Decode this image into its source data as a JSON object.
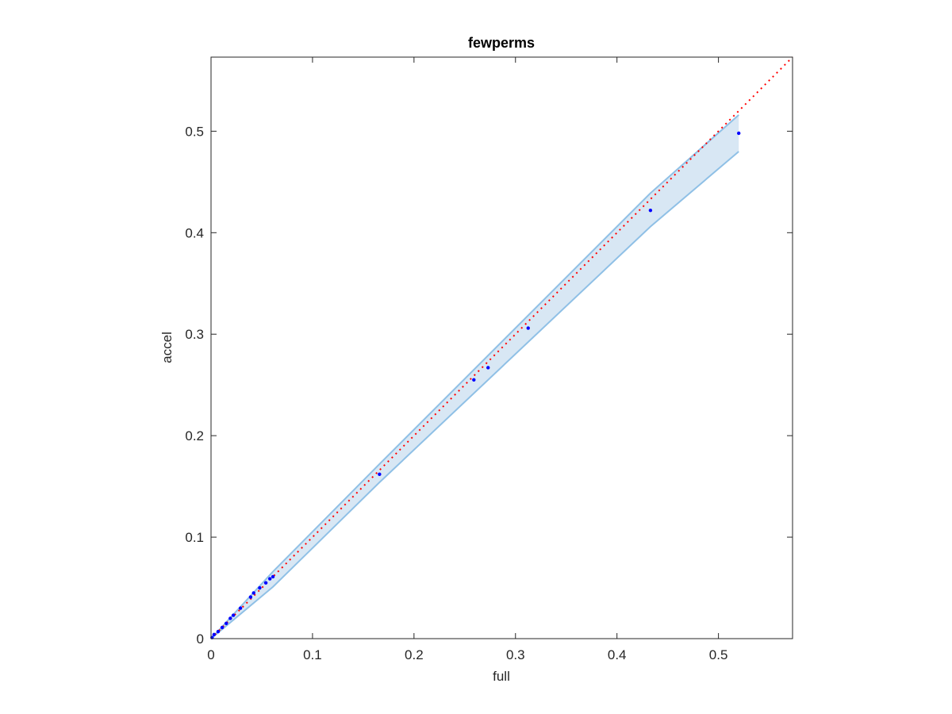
{
  "chart_data": {
    "type": "scatter",
    "title": "fewperms",
    "x_label": "full",
    "y_label": "accel",
    "x": [
      0.52,
      0.433,
      0.3125,
      0.273,
      0.259,
      0.166,
      0.061,
      0.058,
      0.054,
      0.048,
      0.042,
      0.039,
      0.029,
      0.022,
      0.019,
      0.015,
      0.011,
      0.007,
      0.003,
      0.001
    ],
    "series": [
      {
        "color": "#0000ff",
        "values": [
          0.498,
          0.422,
          0.306,
          0.267,
          0.255,
          0.162,
          0.061,
          0.059,
          0.055,
          0.05,
          0.045,
          0.041,
          0.03,
          0.023,
          0.02,
          0.015,
          0.011,
          0.007,
          0.004,
          0.001
        ]
      }
    ],
    "band": {
      "x": [
        0,
        0.061,
        0.166,
        0.433,
        0.52
      ],
      "upper": [
        0,
        0.066,
        0.172,
        0.439,
        0.516
      ],
      "lower": [
        0,
        0.051,
        0.154,
        0.406,
        0.48
      ],
      "color": "#8fc0e6",
      "fill": "#d8e7f4"
    },
    "reference_line": {
      "x": [
        0,
        0.573
      ],
      "y": [
        0,
        0.573
      ],
      "color": "#ff0000"
    },
    "xlim": [
      0,
      0.573
    ],
    "ylim": [
      0,
      0.573
    ],
    "xticks": [
      0,
      0.1,
      0.2,
      0.3,
      0.4,
      0.5
    ],
    "yticks": [
      0,
      0.1,
      0.2,
      0.3,
      0.4,
      0.5
    ]
  }
}
